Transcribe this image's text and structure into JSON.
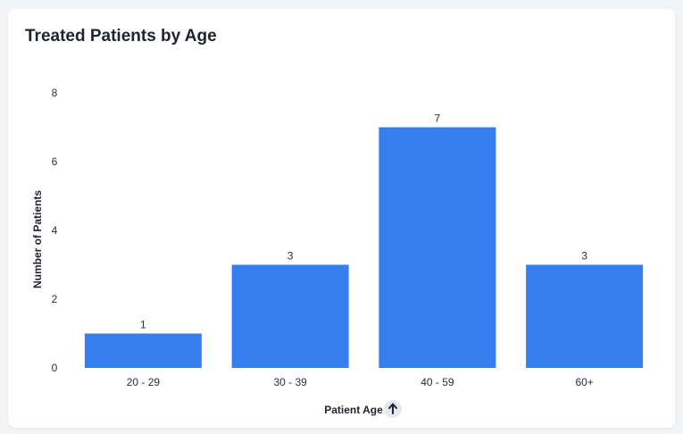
{
  "card": {
    "title": "Treated Patients by Age"
  },
  "colors": {
    "bar": "#347ef0",
    "background": "#f2f3f5",
    "card": "#ffffff",
    "sort_button": "#e6e8ec"
  },
  "chart_data": {
    "type": "bar",
    "title": "Treated Patients by Age",
    "categories": [
      "20 - 29",
      "30 - 39",
      "40 - 59",
      "60+"
    ],
    "values": [
      1,
      3,
      7,
      3
    ],
    "xlabel": "Patient Age",
    "ylabel": "Number of Patients",
    "ylim": [
      0,
      8
    ],
    "yticks": [
      0,
      2,
      4,
      6,
      8
    ],
    "grid": false,
    "legend": "none",
    "data_labels": true,
    "x_sort_icon": "arrow-up-icon"
  }
}
